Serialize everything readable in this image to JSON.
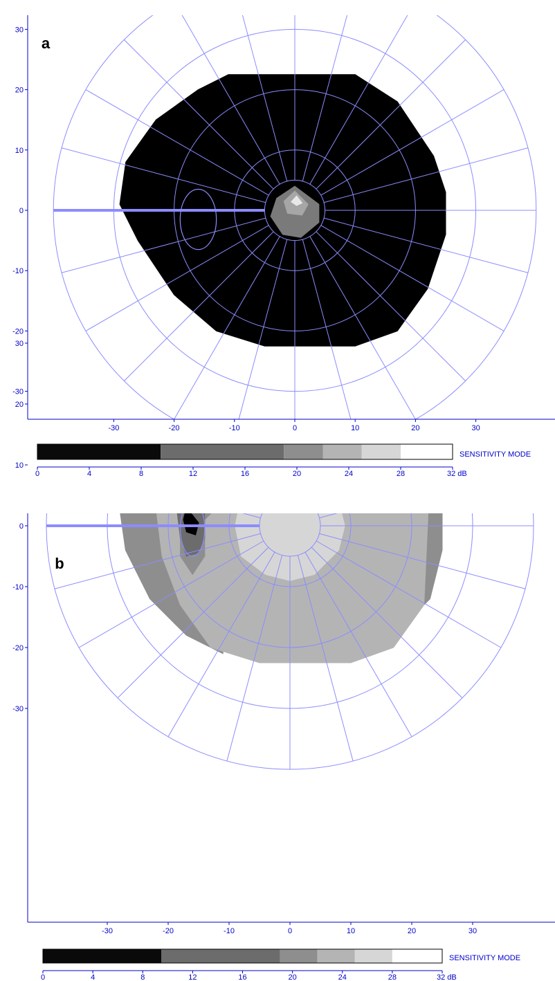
{
  "colors": {
    "grid": "#8c8cff",
    "axis": "#0000c8",
    "text": "#0000c8"
  },
  "chart_data": [
    {
      "type": "heatmap",
      "subtype": "microperimetry polar sensitivity map",
      "panel_label": "a",
      "x_ticks": [
        "-30",
        "-20",
        "-10",
        "0",
        "10",
        "20",
        "30"
      ],
      "y_ticks": [
        "30",
        "20",
        "10",
        "0",
        "-10",
        "-20",
        "-30"
      ],
      "xlim": [
        -43,
        43
      ],
      "ylim": [
        -34,
        31
      ],
      "grid_rings_deg": [
        5,
        10,
        20,
        30,
        40
      ],
      "grid_rays": 24,
      "scale": {
        "ticks": [
          "0",
          "4",
          "8",
          "12",
          "16",
          "20",
          "24",
          "28",
          "32 dB"
        ],
        "bands": [
          {
            "from": 0,
            "to": 9.5,
            "color": "#0a0a0a"
          },
          {
            "from": 9.5,
            "to": 19.0,
            "color": "#6c6c6c"
          },
          {
            "from": 19.0,
            "to": 22.0,
            "color": "#8e8e8e"
          },
          {
            "from": 22.0,
            "to": 25.0,
            "color": "#b4b4b4"
          },
          {
            "from": 25.0,
            "to": 28.0,
            "color": "#d6d6d6"
          },
          {
            "from": 28.0,
            "to": 32.0,
            "color": "#ffffff"
          }
        ],
        "label": "SENSITIVITY MODE"
      },
      "regions": [
        {
          "name": "tested-field",
          "fill": "#000000",
          "dB_range": "0-9.5",
          "polygon": [
            [
              -11,
              22.5
            ],
            [
              10,
              22.5
            ],
            [
              17,
              18
            ],
            [
              23,
              9
            ],
            [
              25,
              3
            ],
            [
              25,
              -4
            ],
            [
              22,
              -13
            ],
            [
              17,
              -20
            ],
            [
              10,
              -22.5
            ],
            [
              -5,
              -22.5
            ],
            [
              -13,
              -20
            ],
            [
              -20,
              -14
            ],
            [
              -26,
              -5
            ],
            [
              -29,
              1
            ],
            [
              -28,
              8
            ],
            [
              -23,
              15
            ],
            [
              -16,
              20
            ]
          ]
        },
        {
          "name": "fovea-outer",
          "fill": "#7a7a7a",
          "dB_range": "9.5-19",
          "polygon": [
            [
              0,
              4
            ],
            [
              4,
              1
            ],
            [
              4,
              -2
            ],
            [
              1,
              -4.5
            ],
            [
              -2,
              -4
            ],
            [
              -4,
              -1
            ],
            [
              -3,
              2
            ]
          ]
        },
        {
          "name": "fovea-mid",
          "fill": "#a6a6a6",
          "dB_range": "19-22",
          "polygon": [
            [
              0,
              3.2
            ],
            [
              2.2,
              1
            ],
            [
              1.2,
              -0.8
            ],
            [
              -1.2,
              -0.5
            ],
            [
              -1.8,
              1.5
            ]
          ]
        },
        {
          "name": "fovea-peak",
          "fill": "#e8e8e8",
          "dB_range": "25-28",
          "polygon": [
            [
              0.3,
              2.4
            ],
            [
              1.2,
              1.2
            ],
            [
              0.3,
              0.8
            ],
            [
              -0.6,
              1.4
            ]
          ]
        }
      ],
      "optic_disc": {
        "cx": -16,
        "cy": -1.5,
        "rx": 3,
        "ry": 5
      },
      "line_to_fovea": {
        "from": [
          -40,
          0
        ],
        "to": [
          -5,
          0
        ]
      }
    },
    {
      "type": "heatmap",
      "subtype": "microperimetry polar sensitivity map",
      "panel_label": "b",
      "x_ticks": [
        "-30",
        "-20",
        "-10",
        "0",
        "10",
        "20",
        "30"
      ],
      "y_ticks": [
        "30",
        "20",
        "10",
        "0",
        "-10",
        "-20",
        "-30"
      ],
      "xlim": [
        -43,
        43
      ],
      "ylim": [
        -34,
        31
      ],
      "grid_rings_deg": [
        5,
        10,
        20,
        30,
        40
      ],
      "grid_rays": 24,
      "scale": {
        "ticks": [
          "0",
          "4",
          "8",
          "12",
          "16",
          "20",
          "24",
          "28",
          "32 dB"
        ],
        "bands": [
          {
            "from": 0,
            "to": 9.5,
            "color": "#0a0a0a"
          },
          {
            "from": 9.5,
            "to": 19.0,
            "color": "#6c6c6c"
          },
          {
            "from": 19.0,
            "to": 22.0,
            "color": "#8e8e8e"
          },
          {
            "from": 22.0,
            "to": 25.0,
            "color": "#b4b4b4"
          },
          {
            "from": 25.0,
            "to": 28.0,
            "color": "#d6d6d6"
          },
          {
            "from": 28.0,
            "to": 32.0,
            "color": "#ffffff"
          }
        ],
        "label": "SENSITIVITY MODE"
      },
      "regions": [
        {
          "name": "left-edge-band",
          "fill": "#8e8e8e",
          "dB_range": "19-22",
          "polygon": [
            [
              -20,
              13
            ],
            [
              -11,
              21
            ],
            [
              -11,
              -21
            ],
            [
              -17,
              -18
            ],
            [
              -23,
              -12
            ],
            [
              -27,
              -4
            ],
            [
              -28,
              3
            ],
            [
              -26,
              9
            ]
          ]
        },
        {
          "name": "right-edge-band",
          "fill": "#8e8e8e",
          "dB_range": "19-22",
          "polygon": [
            [
              23,
              9
            ],
            [
              25,
              4
            ],
            [
              25,
              -4
            ],
            [
              23,
              -12
            ],
            [
              22,
              -13
            ]
          ]
        },
        {
          "name": "main-field",
          "fill": "#b4b4b4",
          "dB_range": "22-25",
          "polygon": [
            [
              -11,
              22.5
            ],
            [
              10,
              22.5
            ],
            [
              17,
              18
            ],
            [
              23,
              9
            ],
            [
              22,
              -13
            ],
            [
              17,
              -20
            ],
            [
              10,
              -22.5
            ],
            [
              -5,
              -22.5
            ],
            [
              -13,
              -20
            ],
            [
              -18,
              -13
            ],
            [
              -21,
              -5
            ],
            [
              -22,
              3
            ],
            [
              -20,
              11
            ],
            [
              -16,
              18
            ]
          ]
        },
        {
          "name": "central-plateau",
          "fill": "#d6d6d6",
          "dB_range": "25-28",
          "polygon": [
            [
              0,
              10
            ],
            [
              5,
              8
            ],
            [
              8,
              4
            ],
            [
              9,
              0
            ],
            [
              8,
              -4
            ],
            [
              4,
              -8
            ],
            [
              0,
              -9
            ],
            [
              -4,
              -8
            ],
            [
              -8,
              -5
            ],
            [
              -9,
              0
            ],
            [
              -8,
              5
            ],
            [
              -4,
              8
            ]
          ]
        },
        {
          "name": "disc-outer",
          "fill": "#8e8e8e",
          "dB_range": "19-22",
          "polygon": [
            [
              -18,
              7
            ],
            [
              -15,
              6.5
            ],
            [
              -12,
              3
            ],
            [
              -14,
              1
            ],
            [
              -14,
              -5
            ],
            [
              -16,
              -8
            ],
            [
              -18,
              -5
            ],
            [
              -18,
              2
            ]
          ]
        },
        {
          "name": "disc-mid",
          "fill": "#6c6c6c",
          "dB_range": "9.5-19",
          "polygon": [
            [
              -18,
              5
            ],
            [
              -16,
              4.5
            ],
            [
              -14,
              2
            ],
            [
              -14,
              -2
            ],
            [
              -15,
              -4.5
            ],
            [
              -17,
              -5
            ],
            [
              -18,
              -2
            ],
            [
              -18.5,
              2
            ]
          ]
        },
        {
          "name": "disc-core",
          "fill": "#000000",
          "dB_range": "0-9.5",
          "polygon": [
            [
              -17,
              3
            ],
            [
              -15,
              0.5
            ],
            [
              -15.5,
              -1.5
            ],
            [
              -17,
              -1
            ],
            [
              -17.5,
              1
            ]
          ]
        }
      ],
      "optic_disc": {
        "cx": -16,
        "cy": -0.5,
        "rx": 2,
        "ry": 4.5
      },
      "line_to_fovea": {
        "from": [
          -40,
          0
        ],
        "to": [
          -5,
          0
        ]
      }
    }
  ]
}
